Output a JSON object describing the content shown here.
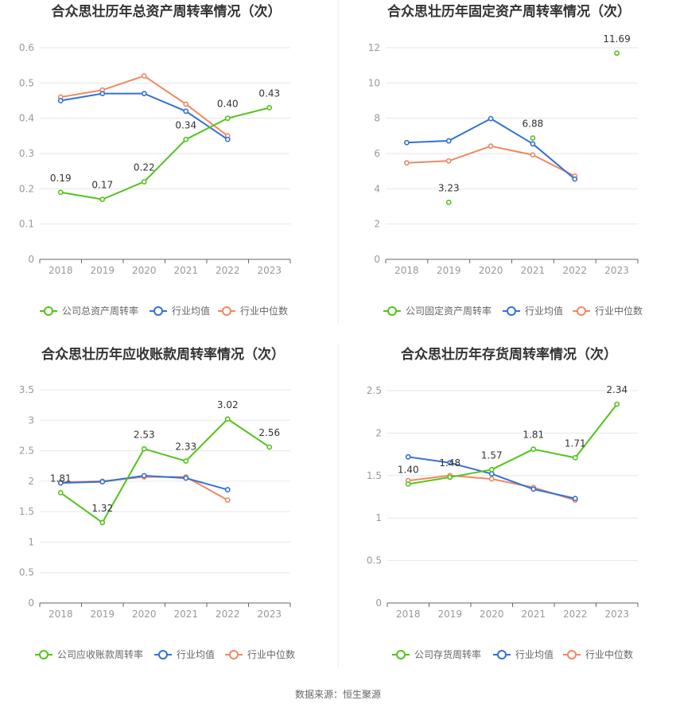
{
  "source": "数据来源：恒生聚源",
  "colors": {
    "company": "#52c41a",
    "avg": "#3370d8",
    "median": "#f08860"
  },
  "chart_data": [
    {
      "type": "line",
      "title": "合众思壮历年总资产周转率情况（次）",
      "categories": [
        "2018",
        "2019",
        "2020",
        "2021",
        "2022",
        "2023"
      ],
      "ylim": [
        0,
        0.6
      ],
      "yticks": [
        "0",
        "0.1",
        "0.2",
        "0.3",
        "0.4",
        "0.5",
        "0.6"
      ],
      "series": [
        {
          "name": "公司总资产周转率",
          "values": [
            0.19,
            0.17,
            0.22,
            0.34,
            0.4,
            0.43
          ],
          "labels": [
            "0.19",
            "0.17",
            "0.22",
            "0.34",
            "0.40",
            "0.43"
          ]
        },
        {
          "name": "行业均值",
          "values": [
            0.45,
            0.47,
            0.47,
            0.42,
            0.34,
            null
          ]
        },
        {
          "name": "行业中位数",
          "values": [
            0.46,
            0.48,
            0.52,
            0.44,
            0.35,
            null
          ]
        }
      ],
      "legend": "bottom",
      "grid": true
    },
    {
      "type": "line",
      "title": "合众思壮历年固定资产周转率情况（次）",
      "categories": [
        "2018",
        "2019",
        "2020",
        "2021",
        "2022",
        "2023"
      ],
      "ylim": [
        0,
        12
      ],
      "yticks": [
        "0",
        "2",
        "4",
        "6",
        "8",
        "10",
        "12"
      ],
      "series": [
        {
          "name": "公司固定资产周转率",
          "values": [
            null,
            3.23,
            null,
            6.88,
            null,
            11.69
          ],
          "labels": [
            "",
            "3.23",
            "",
            "6.88",
            "",
            "11.69"
          ]
        },
        {
          "name": "行业均值",
          "values": [
            6.62,
            6.72,
            7.98,
            6.55,
            4.55,
            null
          ]
        },
        {
          "name": "行业中位数",
          "values": [
            5.47,
            5.58,
            6.42,
            5.92,
            4.72,
            null
          ]
        }
      ],
      "legend": "bottom",
      "grid": true
    },
    {
      "type": "line",
      "title": "合众思壮历年应收账款周转率情况（次）",
      "categories": [
        "2018",
        "2019",
        "2020",
        "2021",
        "2022",
        "2023"
      ],
      "ylim": [
        0,
        3.5
      ],
      "yticks": [
        "0",
        "0.5",
        "1",
        "1.5",
        "2",
        "2.5",
        "3",
        "3.5"
      ],
      "series": [
        {
          "name": "公司应收账款周转率",
          "values": [
            1.81,
            1.32,
            2.53,
            2.33,
            3.02,
            2.56
          ],
          "labels": [
            "1.81",
            "1.32",
            "2.53",
            "2.33",
            "3.02",
            "2.56"
          ]
        },
        {
          "name": "行业均值",
          "values": [
            1.97,
            1.99,
            2.09,
            2.05,
            1.86,
            null
          ]
        },
        {
          "name": "行业中位数",
          "values": [
            1.98,
            2.0,
            2.07,
            2.07,
            1.69,
            null
          ]
        }
      ],
      "legend": "bottom",
      "grid": true
    },
    {
      "type": "line",
      "title": "合众思壮历年存货周转率情况（次）",
      "categories": [
        "2018",
        "2019",
        "2020",
        "2021",
        "2022",
        "2023"
      ],
      "ylim": [
        0,
        2.5
      ],
      "yticks": [
        "0",
        "0.5",
        "1",
        "1.5",
        "2",
        "2.5"
      ],
      "series": [
        {
          "name": "公司存货周转率",
          "values": [
            1.4,
            1.48,
            1.57,
            1.81,
            1.71,
            2.34
          ],
          "labels": [
            "1.40",
            "1.48",
            "1.57",
            "1.81",
            "1.71",
            "2.34"
          ]
        },
        {
          "name": "行业均值",
          "values": [
            1.72,
            1.65,
            1.52,
            1.34,
            1.23,
            null
          ]
        },
        {
          "name": "行业中位数",
          "values": [
            1.44,
            1.5,
            1.46,
            1.36,
            1.21,
            null
          ]
        }
      ],
      "legend": "bottom",
      "grid": true
    }
  ]
}
